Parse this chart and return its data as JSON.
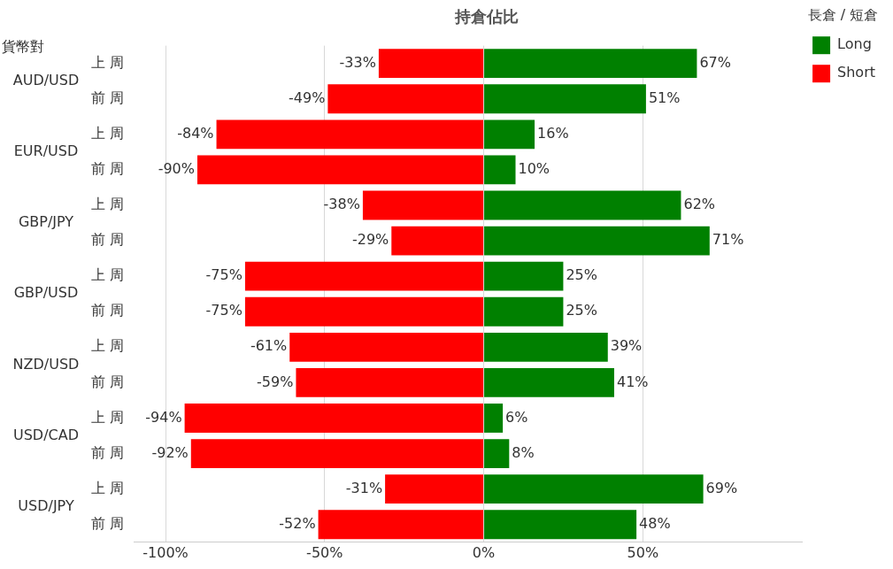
{
  "chart_data": {
    "type": "bar",
    "orientation": "horizontal",
    "stacked": true,
    "title": "持倉佔比",
    "ylabel": "貨幣對",
    "legend_title": "長倉 / 短倉",
    "legend": "top right",
    "grid": "x",
    "categories": [
      "上 周",
      "前 周",
      "上 周",
      "前 周",
      "上 周",
      "前 周",
      "上 周",
      "前 周",
      "上 周",
      "前 周",
      "上 周",
      "前 周",
      "上 周",
      "前 周"
    ],
    "annotations": [
      "AUD/USD",
      "EUR/USD",
      "GBP/JPY",
      "GBP/USD",
      "NZD/USD",
      "USD/CAD",
      "USD/JPY"
    ],
    "xlim": [
      -110,
      100
    ],
    "xticks": [
      {
        "value": -100,
        "label": "-100%"
      },
      {
        "value": -50,
        "label": "-50%"
      },
      {
        "value": 0,
        "label": "0%"
      },
      {
        "value": 50,
        "label": "50%"
      }
    ],
    "series": [
      {
        "name": "Long",
        "color": "#008000",
        "values": [
          67,
          51,
          16,
          10,
          62,
          71,
          25,
          25,
          39,
          41,
          6,
          8,
          69,
          48
        ],
        "value_labels": [
          "67%",
          "51%",
          "16%",
          "10%",
          "62%",
          "71%",
          "25%",
          "25%",
          "39%",
          "41%",
          "6%",
          "8%",
          "69%",
          "48%"
        ]
      },
      {
        "name": "Short",
        "color": "#ff0000",
        "values": [
          -33,
          -49,
          -84,
          -90,
          -38,
          -29,
          -75,
          -75,
          -61,
          -59,
          -94,
          -92,
          -31,
          -52
        ],
        "value_labels": [
          "-33%",
          "-49%",
          "-84%",
          "-90%",
          "-38%",
          "-29%",
          "-75%",
          "-75%",
          "-61%",
          "-59%",
          "-94%",
          "-92%",
          "-31%",
          "-52%"
        ]
      }
    ]
  }
}
